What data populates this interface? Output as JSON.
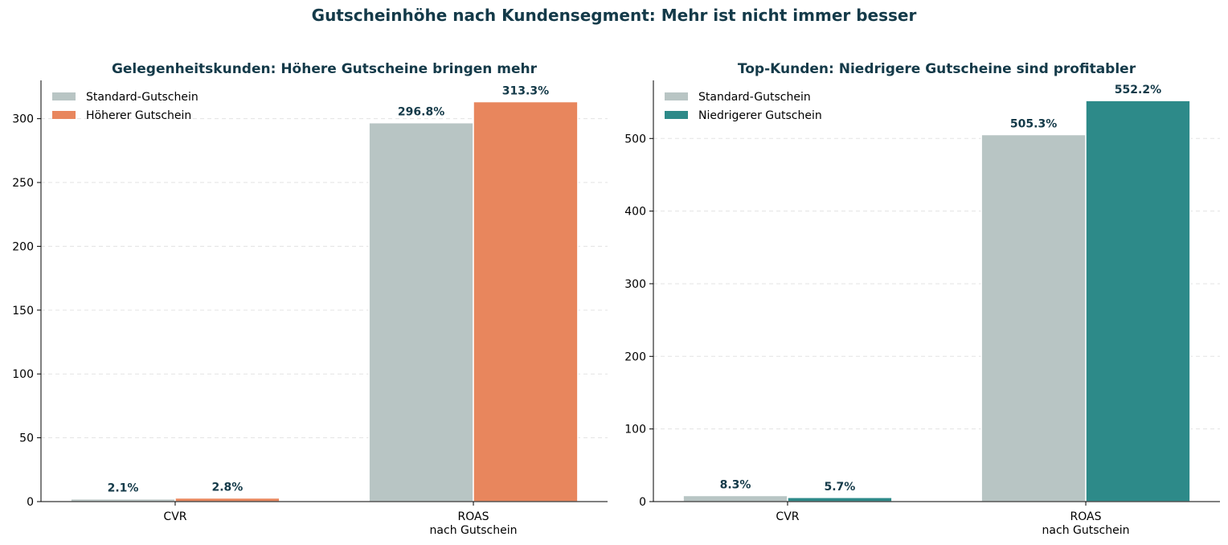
{
  "title": "Gutscheinhöhe nach Kundensegment: Mehr ist nicht immer besser",
  "chart_data": [
    {
      "type": "bar",
      "title": "Gelegenheitskunden: Höhere Gutscheine bringen mehr",
      "categories": [
        "CVR",
        "ROAS\nnach Gutschein"
      ],
      "ylim": [
        0,
        330
      ],
      "yticks": [
        0,
        50,
        100,
        150,
        200,
        250,
        300
      ],
      "grid": true,
      "legend": "top-left",
      "series": [
        {
          "name": "Standard-Gutschein",
          "values": [
            2.1,
            296.8
          ],
          "labels": [
            "2.1%",
            "296.8%"
          ],
          "color": "#b8c5c4"
        },
        {
          "name": "Höherer Gutschein",
          "values": [
            2.8,
            313.3
          ],
          "labels": [
            "2.8%",
            "313.3%"
          ],
          "color": "#e8865d"
        }
      ]
    },
    {
      "type": "bar",
      "title": "Top-Kunden: Niedrigere Gutscheine sind profitabler",
      "categories": [
        "CVR",
        "ROAS\nnach Gutschein"
      ],
      "ylim": [
        0,
        580
      ],
      "yticks": [
        0,
        100,
        200,
        300,
        400,
        500
      ],
      "grid": true,
      "legend": "top-left",
      "series": [
        {
          "name": "Standard-Gutschein",
          "values": [
            8.3,
            505.3
          ],
          "labels": [
            "8.3%",
            "505.3%"
          ],
          "color": "#b8c5c4"
        },
        {
          "name": "Niedrigerer Gutschein",
          "values": [
            5.7,
            552.2
          ],
          "labels": [
            "5.7%",
            "552.2%"
          ],
          "color": "#2d8a89"
        }
      ]
    }
  ]
}
